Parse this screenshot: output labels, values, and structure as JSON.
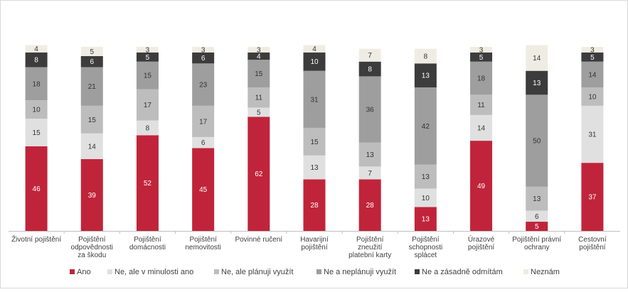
{
  "chart_data": {
    "type": "bar",
    "stacked": true,
    "ylim": [
      0,
      100
    ],
    "grid": false,
    "legend_position": "bottom",
    "categories": [
      [
        "Životní pojištění"
      ],
      [
        "Pojištění",
        "odpovědnosti",
        "za škodu"
      ],
      [
        "Pojištění",
        "domácnosti"
      ],
      [
        "Pojištění",
        "nemovitosti"
      ],
      [
        "Povinné ručení"
      ],
      [
        "Havarijní",
        "pojištění"
      ],
      [
        "Pojištění",
        "zneužití",
        "platební karty"
      ],
      [
        "Pojištění",
        "schopnosti",
        "splácet"
      ],
      [
        "Úrazové",
        "pojištění"
      ],
      [
        "Pojištění právní",
        "ochrany"
      ],
      [
        "Cestovní",
        "pojištění"
      ]
    ],
    "series": [
      {
        "name": "Ano",
        "color": "#c0243a",
        "label_color": "#ffffff",
        "values": [
          46,
          39,
          52,
          45,
          62,
          28,
          28,
          13,
          49,
          5,
          37
        ]
      },
      {
        "name": "Ne, ale v minulosti ano",
        "color": "#e0e0e0",
        "label_color": "#333333",
        "values": [
          15,
          14,
          8,
          6,
          5,
          13,
          7,
          10,
          14,
          6,
          31
        ]
      },
      {
        "name": "Ne, ale plánuji využít",
        "color": "#bdbdbd",
        "label_color": "#333333",
        "values": [
          10,
          15,
          17,
          17,
          11,
          15,
          13,
          13,
          11,
          13,
          10
        ]
      },
      {
        "name": "Ne a neplánuji využít",
        "color": "#9e9e9e",
        "label_color": "#333333",
        "values": [
          18,
          21,
          15,
          23,
          15,
          31,
          36,
          42,
          18,
          50,
          14
        ]
      },
      {
        "name": "Ne a zásadně odmítám",
        "color": "#3c3c3c",
        "label_color": "#ffffff",
        "values": [
          8,
          6,
          5,
          6,
          4,
          10,
          8,
          13,
          5,
          13,
          5
        ]
      },
      {
        "name": "Neznám",
        "color": "#efede3",
        "label_color": "#333333",
        "values": [
          4,
          5,
          3,
          3,
          3,
          4,
          7,
          8,
          3,
          14,
          3
        ]
      }
    ]
  }
}
